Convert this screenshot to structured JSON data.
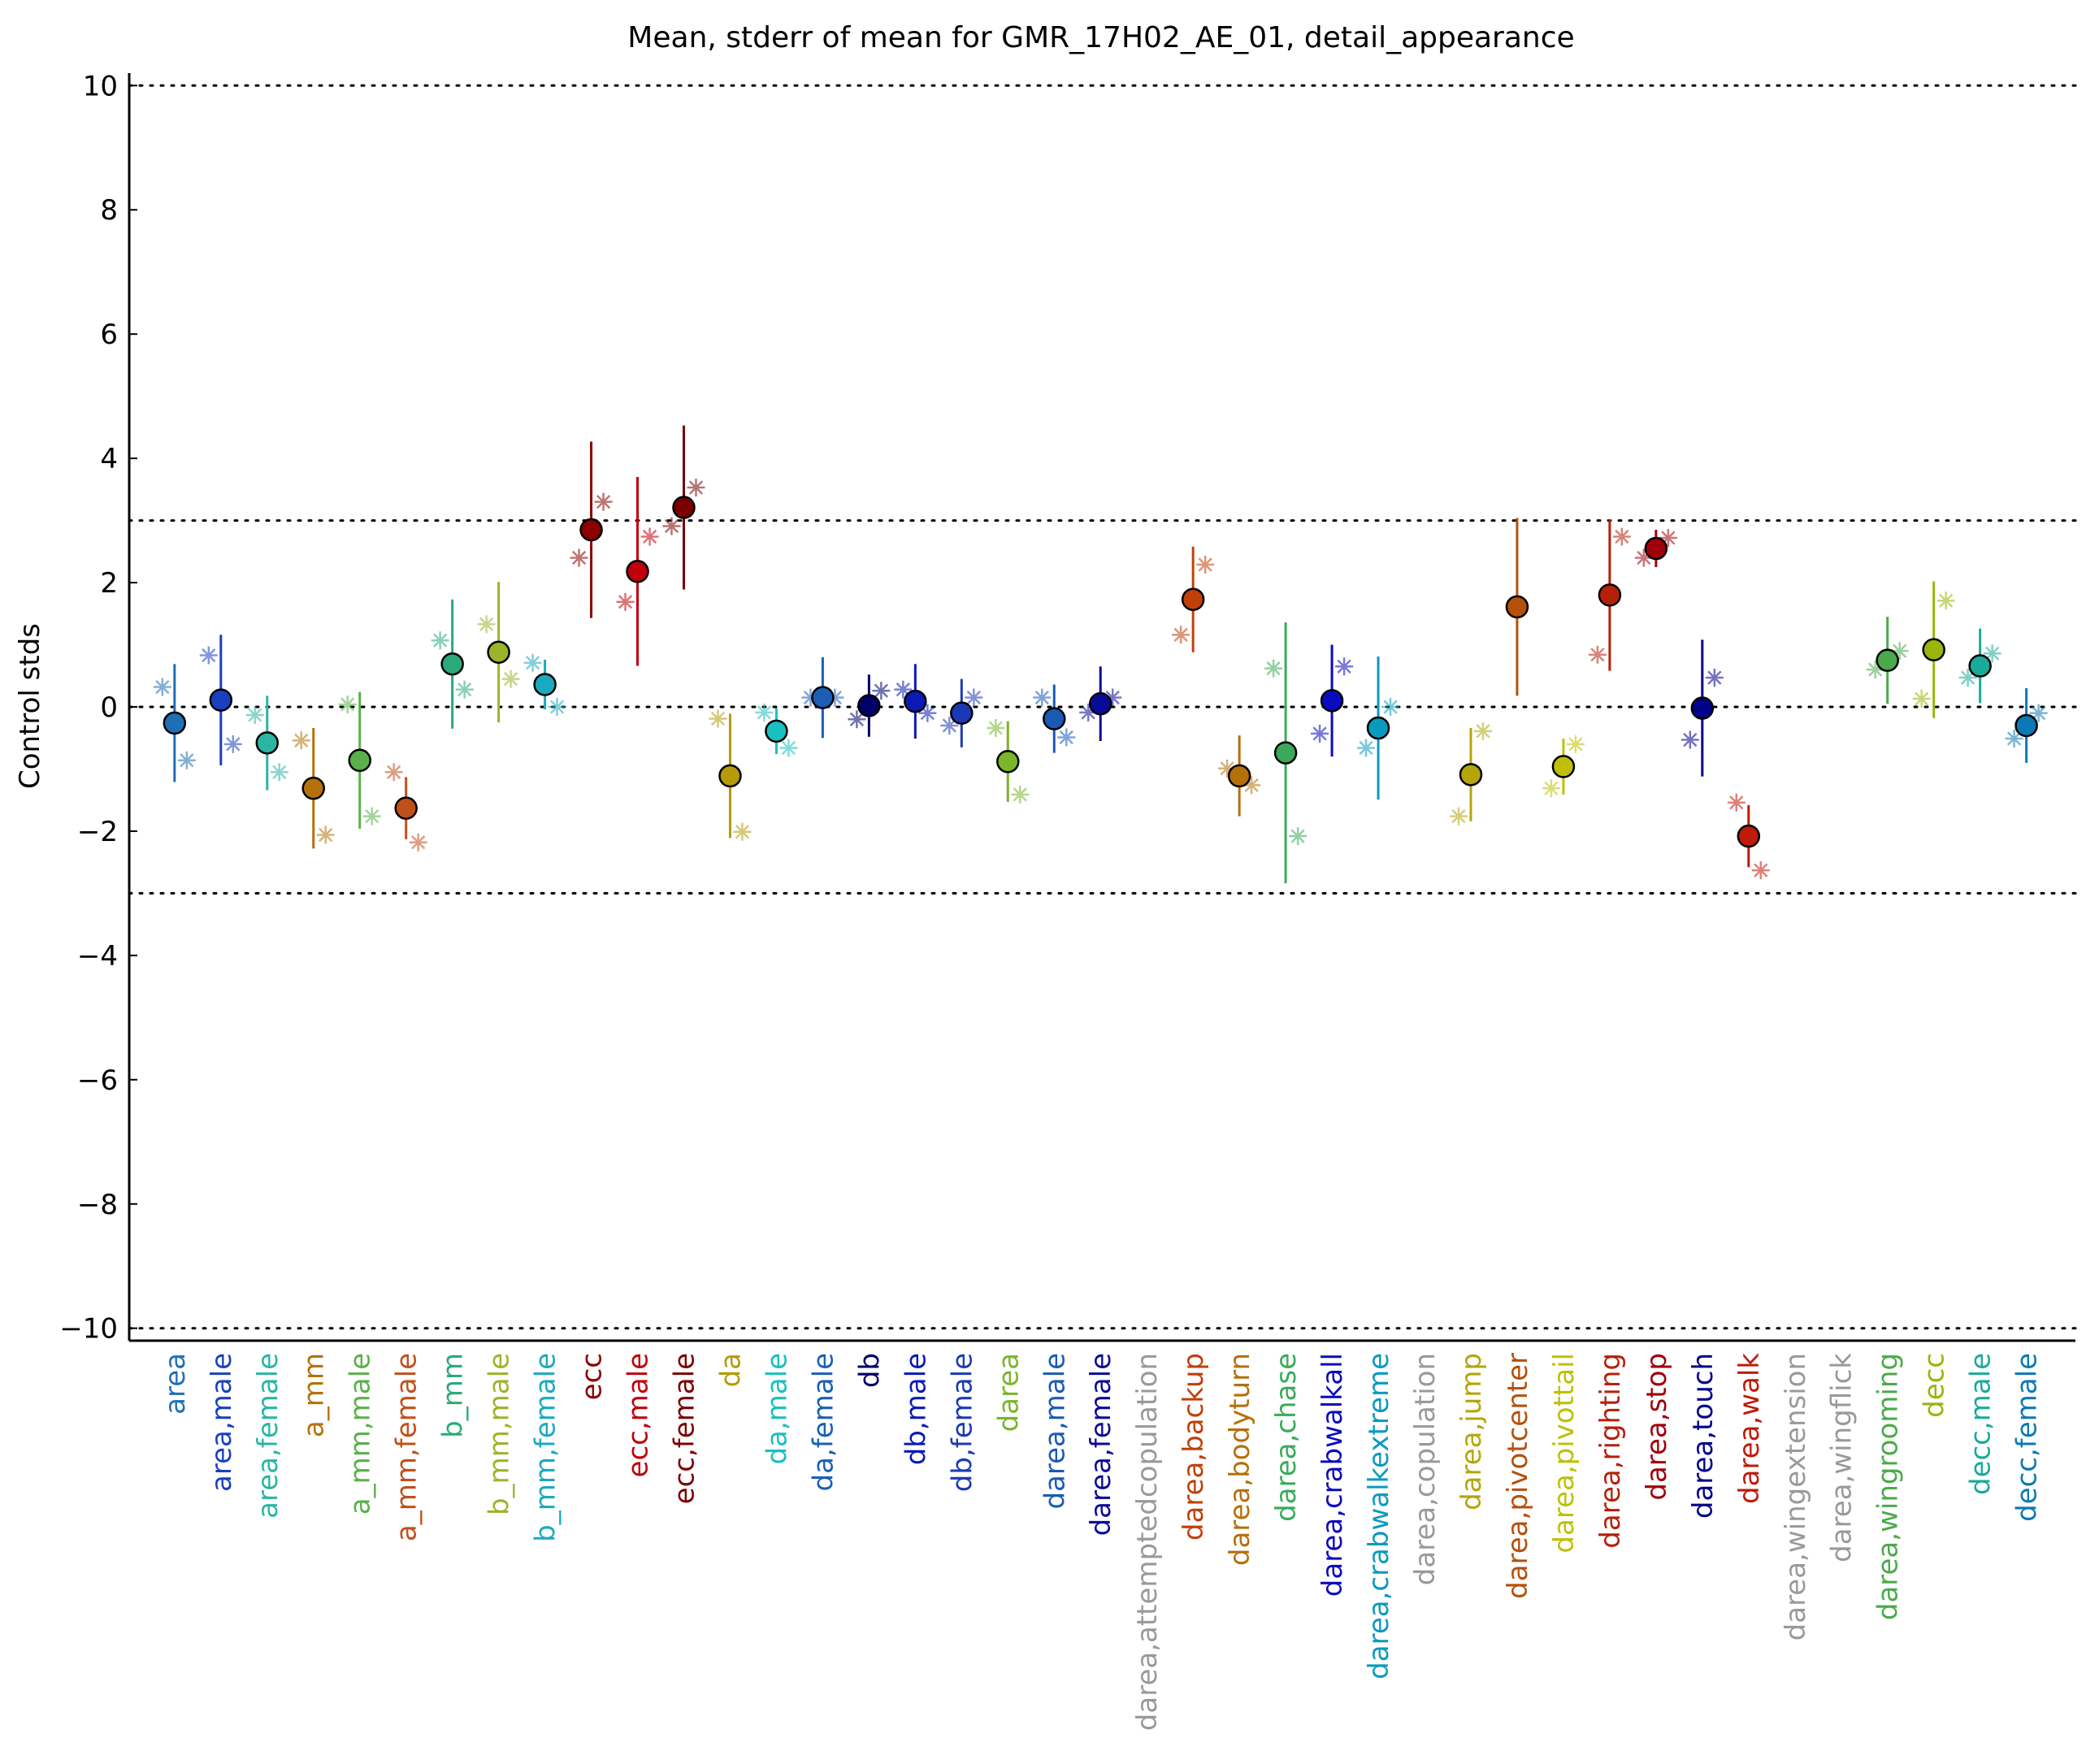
{
  "chart_data": {
    "type": "errorbar",
    "title": "Mean, stderr of mean for GMR_17H02_AE_01, detail_appearance",
    "ylabel": "Control stds",
    "categories": [
      "area",
      "area,male",
      "area,female",
      "a_mm",
      "a_mm,male",
      "a_mm,female",
      "b_mm",
      "b_mm,male",
      "b_mm,female",
      "ecc",
      "ecc,male",
      "ecc,female",
      "da",
      "da,male",
      "da,female",
      "db",
      "db,male",
      "db,female",
      "darea",
      "darea,male",
      "darea,female",
      "darea,attemptedcopulation",
      "darea,backup",
      "darea,bodyturn",
      "darea,chase",
      "darea,crabwalkall",
      "darea,crabwalkextreme",
      "darea,copulation",
      "darea,jump",
      "darea,pivotcenter",
      "darea,pivottail",
      "darea,righting",
      "darea,stop",
      "darea,touch",
      "darea,walk",
      "darea,wingextension",
      "darea,wingflick",
      "darea,wingrooming",
      "decc",
      "decc,male",
      "decc,female"
    ],
    "colors": [
      "#1f6fb5",
      "#1a3fbf",
      "#2ab5a5",
      "#b5720a",
      "#5ab04a",
      "#c0501a",
      "#2aaa7a",
      "#9ab52a",
      "#1aaabf",
      "#8b0000",
      "#c0000a",
      "#7a0000",
      "#b59a0a",
      "#1abfbf",
      "#1a5fb5",
      "#00006a",
      "#0a1ab5",
      "#1a3ab5",
      "#7ab52a",
      "#1a5ab5",
      "#0a0a9a",
      "#999999",
      "#c0400a",
      "#b5700a",
      "#3aaa5a",
      "#0a0abf",
      "#0a9abf",
      "#999999",
      "#b5a50a",
      "#b5500a",
      "#bfbf0a",
      "#b5200a",
      "#a0000a",
      "#00008b",
      "#bf1a0a",
      "#999999",
      "#999999",
      "#4aaa4a",
      "#9ab50a",
      "#1aaa9a",
      "#0a7ab5"
    ],
    "values": [
      -0.26,
      0.11,
      -0.58,
      -1.31,
      -0.86,
      -1.63,
      0.69,
      0.88,
      0.36,
      2.85,
      2.18,
      3.21,
      -1.11,
      -0.39,
      0.15,
      0.02,
      0.09,
      -0.1,
      -0.88,
      -0.19,
      0.05,
      null,
      1.73,
      -1.11,
      -0.74,
      0.1,
      -0.34,
      null,
      -1.09,
      1.61,
      -0.96,
      1.8,
      2.55,
      -0.02,
      -2.08,
      null,
      null,
      0.75,
      0.92,
      0.66,
      -0.3
    ],
    "errors": [
      0.95,
      1.05,
      0.76,
      0.97,
      1.1,
      0.5,
      1.04,
      1.13,
      0.4,
      1.42,
      1.52,
      1.32,
      1.0,
      0.37,
      0.65,
      0.5,
      0.6,
      0.55,
      0.65,
      0.55,
      0.6,
      null,
      0.85,
      0.65,
      2.1,
      0.9,
      1.15,
      null,
      0.75,
      1.43,
      0.45,
      1.22,
      0.3,
      1.1,
      0.5,
      null,
      null,
      0.7,
      1.1,
      0.6,
      0.6
    ],
    "markers_left": [
      0.32,
      0.83,
      -0.13,
      -0.54,
      0.04,
      -1.05,
      1.07,
      1.33,
      0.71,
      2.4,
      1.69,
      2.91,
      -0.19,
      -0.09,
      0.15,
      -0.2,
      0.28,
      -0.3,
      -0.34,
      0.15,
      -0.09,
      null,
      1.16,
      -0.99,
      0.62,
      -0.43,
      -0.66,
      null,
      -1.76,
      null,
      -1.31,
      0.84,
      2.4,
      -0.53,
      -1.54,
      null,
      null,
      0.6,
      0.13,
      0.47,
      -0.51
    ],
    "markers_right": [
      -0.86,
      -0.6,
      -1.05,
      -2.06,
      -1.76,
      -2.18,
      0.28,
      0.45,
      0,
      3.3,
      2.74,
      3.53,
      -2.01,
      -0.66,
      0.15,
      0.26,
      -0.1,
      0.15,
      -1.41,
      -0.49,
      0.15,
      null,
      2.29,
      -1.26,
      -2.08,
      0.65,
      0,
      null,
      -0.39,
      null,
      -0.6,
      2.74,
      2.72,
      0.47,
      -2.63,
      null,
      null,
      0.9,
      1.71,
      0.86,
      -0.1
    ],
    "ylim": [
      -10.2,
      10.2
    ],
    "yticks": [
      {
        "value": -10,
        "label": "−10"
      },
      {
        "value": -8,
        "label": "−8"
      },
      {
        "value": -6,
        "label": "−6"
      },
      {
        "value": -4,
        "label": "−4"
      },
      {
        "value": -2,
        "label": "−2"
      },
      0,
      2,
      4,
      6,
      8,
      10
    ],
    "reference_lines": [
      -10,
      -3,
      0,
      3,
      10
    ]
  }
}
